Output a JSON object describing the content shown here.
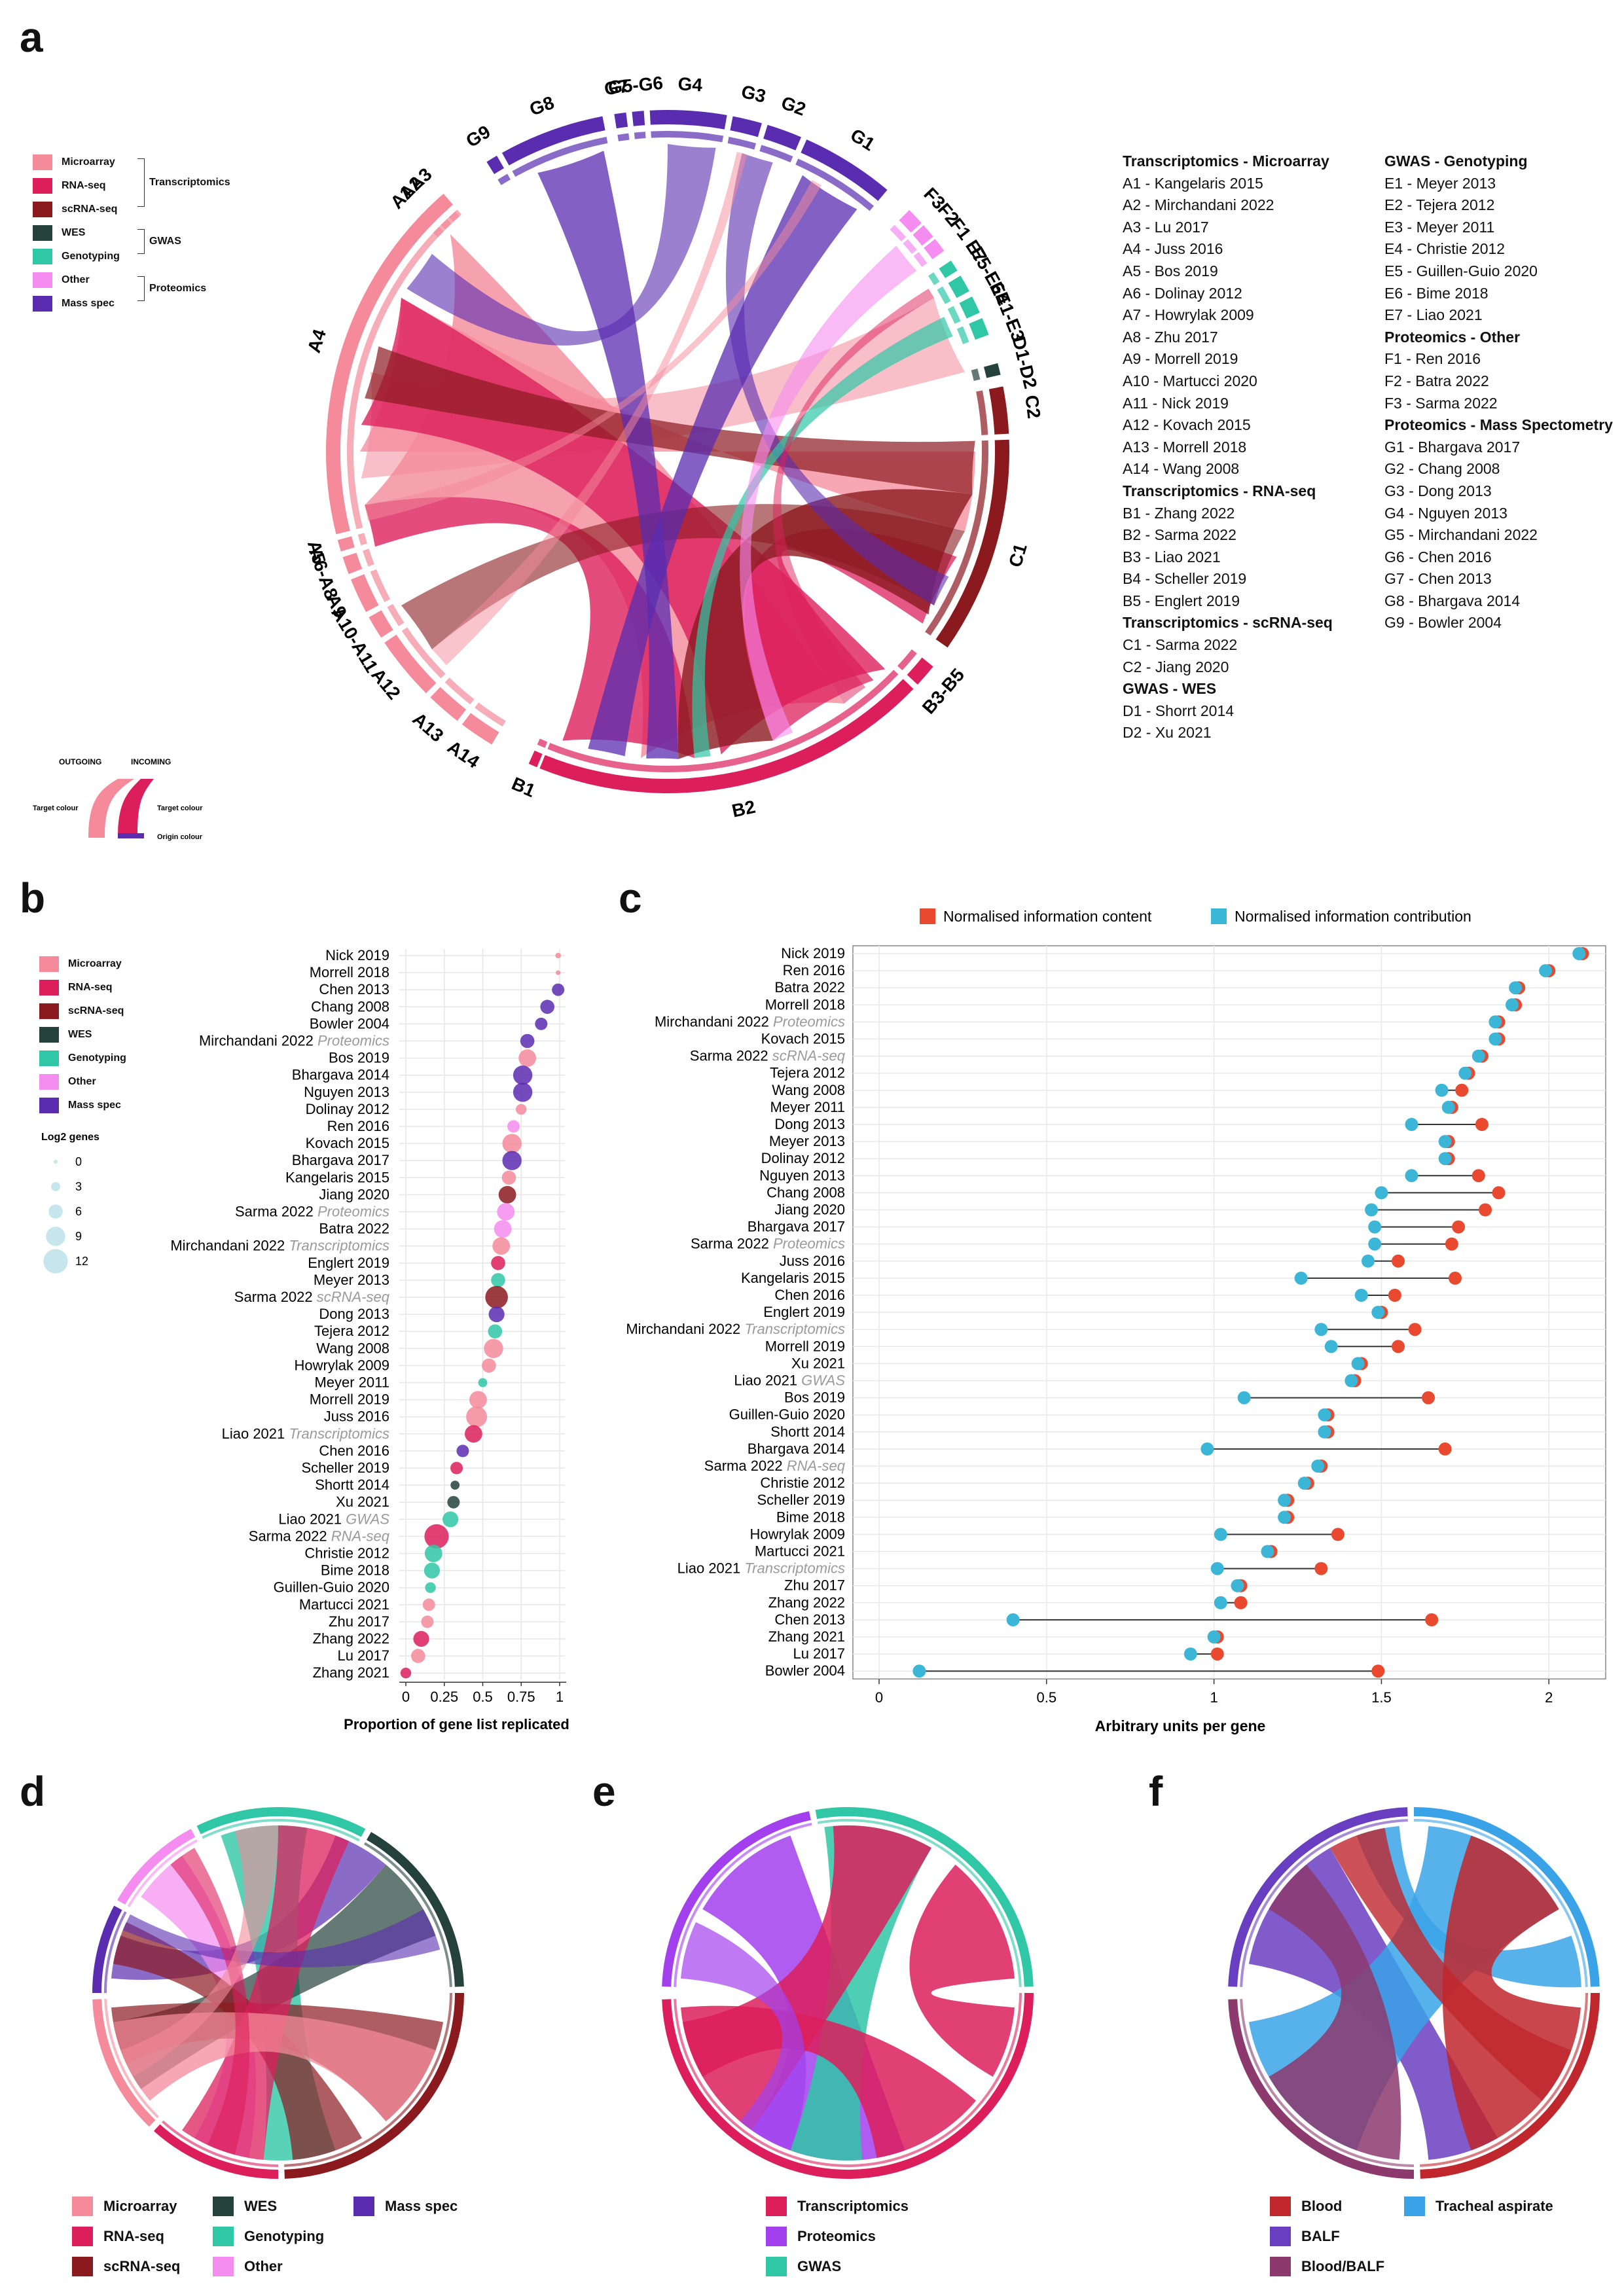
{
  "panels": {
    "a": "a",
    "b": "b",
    "c": "c",
    "d": "d",
    "e": "e",
    "f": "f"
  },
  "colors": {
    "microarray": "#f48a9a",
    "rnaseq": "#dc1f5c",
    "scrnaseq": "#8b1a1f",
    "wes": "#25423a",
    "genotyping": "#2fc7a6",
    "other": "#f58cf0",
    "massspec": "#5a2cb0",
    "transcriptomics": "#dc1f5c",
    "proteomics": "#a240ee",
    "gwas": "#2fc7a6",
    "blood": "#c0272d",
    "balf": "#6a3ec0",
    "bloodbalf": "#8c3a6e",
    "tracheal": "#3aa3e8",
    "content": "#e8492f",
    "contribution": "#3cb6d6"
  },
  "panel_a": {
    "legend": {
      "items": [
        "Microarray",
        "RNA-seq",
        "scRNA-seq",
        "WES",
        "Genotyping",
        "Other",
        "Mass spec"
      ],
      "groups": [
        "Transcriptomics",
        "GWAS",
        "Proteomics"
      ]
    },
    "flow_legend": {
      "outgoing": "OUTGOING",
      "incoming": "INCOMING",
      "target1": "Target colour",
      "target2": "Target colour",
      "origin": "Origin colour"
    },
    "sector_labels": [
      "A1",
      "A2",
      "A3",
      "A4",
      "A5",
      "A6-A8",
      "A9",
      "A10-A11",
      "A12",
      "A13",
      "A14",
      "B1",
      "B2",
      "B3-B5",
      "C1",
      "C2",
      "D1-D2",
      "E1-E3",
      "E4",
      "E5-E6",
      "E7",
      "F1",
      "F2",
      "F3",
      "G1",
      "G2",
      "G3",
      "G4",
      "G5-G6",
      "G7",
      "G8",
      "G9"
    ],
    "key_col1": [
      {
        "t": "Transcriptomics - Microarray",
        "h": true
      },
      {
        "t": "A1 - Kangelaris 2015"
      },
      {
        "t": "A2 - Mirchandani 2022"
      },
      {
        "t": "A3 - Lu 2017"
      },
      {
        "t": "A4 - Juss 2016"
      },
      {
        "t": "A5 - Bos 2019"
      },
      {
        "t": "A6 - Dolinay 2012"
      },
      {
        "t": "A7 - Howrylak 2009"
      },
      {
        "t": "A8 - Zhu 2017"
      },
      {
        "t": "A9 - Morrell 2019"
      },
      {
        "t": "A10 - Martucci 2020"
      },
      {
        "t": "A11 - Nick 2019"
      },
      {
        "t": "A12 - Kovach 2015"
      },
      {
        "t": "A13 - Morrell 2018"
      },
      {
        "t": "A14 - Wang 2008"
      },
      {
        "t": "Transcriptomics - RNA-seq",
        "h": true
      },
      {
        "t": "B1 - Zhang 2022"
      },
      {
        "t": "B2 - Sarma 2022"
      },
      {
        "t": "B3 - Liao 2021"
      },
      {
        "t": "B4 - Scheller 2019"
      },
      {
        "t": "B5 - Englert 2019"
      },
      {
        "t": "Transcriptomics - scRNA-seq",
        "h": true
      },
      {
        "t": "C1 - Sarma 2022"
      },
      {
        "t": "C2 - Jiang 2020"
      },
      {
        "t": "GWAS - WES",
        "h": true
      },
      {
        "t": "D1 - Shorrt 2014"
      },
      {
        "t": "D2 - Xu 2021"
      }
    ],
    "key_col2": [
      {
        "t": "GWAS - Genotyping",
        "h": true
      },
      {
        "t": "E1 - Meyer 2013"
      },
      {
        "t": "E2 - Tejera 2012"
      },
      {
        "t": "E3 - Meyer 2011"
      },
      {
        "t": "E4 - Christie 2012"
      },
      {
        "t": "E5 - Guillen-Guio 2020"
      },
      {
        "t": "E6 - Bime 2018"
      },
      {
        "t": "E7 - Liao 2021"
      },
      {
        "t": "Proteomics - Other",
        "h": true
      },
      {
        "t": "F1 - Ren 2016"
      },
      {
        "t": "F2 - Batra 2022"
      },
      {
        "t": "F3 - Sarma 2022"
      },
      {
        "t": "Proteomics - Mass Spectometry",
        "h": true
      },
      {
        "t": "G1 - Bhargava 2017"
      },
      {
        "t": "G2 - Chang 2008"
      },
      {
        "t": "G3 - Dong 2013"
      },
      {
        "t": "G4 - Nguyen 2013"
      },
      {
        "t": "G5 - Mirchandani 2022"
      },
      {
        "t": "G6 - Chen 2016"
      },
      {
        "t": "G7 - Chen 2013"
      },
      {
        "t": "G8 - Bhargava 2014"
      },
      {
        "t": "G9 - Bowler 2004"
      }
    ]
  },
  "panel_b": {
    "legend_items": [
      "Microarray",
      "RNA-seq",
      "scRNA-seq",
      "WES",
      "Genotyping",
      "Other",
      "Mass spec"
    ],
    "size_title": "Log2 genes",
    "size_levels": [
      "0",
      "3",
      "6",
      "9",
      "12"
    ]
  },
  "panel_d_legend": [
    "Microarray",
    "RNA-seq",
    "scRNA-seq",
    "WES",
    "Genotyping",
    "Other",
    "Mass spec"
  ],
  "panel_e_legend": [
    "Transcriptomics",
    "Proteomics",
    "GWAS"
  ],
  "panel_f_legend": [
    "Blood",
    "BALF",
    "Blood/BALF",
    "Tracheal aspirate"
  ],
  "chart_data": [
    {
      "id": "b",
      "type": "scatter",
      "xlabel": "Proportion of gene list replicated",
      "xlim": [
        0,
        1
      ],
      "xticks": [
        "0",
        "0.25",
        "0.5",
        "0.75",
        "1"
      ],
      "grid": true,
      "points": [
        {
          "label": "Nick 2019",
          "x": 0.99,
          "type": "Microarray",
          "size": 1
        },
        {
          "label": "Morrell 2018",
          "x": 0.99,
          "type": "Microarray",
          "size": 0.5
        },
        {
          "label": "Chen 2013",
          "x": 0.99,
          "type": "Mass spec",
          "size": 5
        },
        {
          "label": "Chang 2008",
          "x": 0.92,
          "type": "Mass spec",
          "size": 6
        },
        {
          "label": "Bowler 2004",
          "x": 0.88,
          "type": "Mass spec",
          "size": 5
        },
        {
          "label": "Mirchandani 2022",
          "sub": "Proteomics",
          "x": 0.79,
          "type": "Mass spec",
          "size": 6
        },
        {
          "label": "Bos 2019",
          "x": 0.79,
          "type": "Microarray",
          "size": 8
        },
        {
          "label": "Bhargava 2014",
          "x": 0.76,
          "type": "Mass spec",
          "size": 9
        },
        {
          "label": "Nguyen 2013",
          "x": 0.76,
          "type": "Mass spec",
          "size": 9
        },
        {
          "label": "Dolinay 2012",
          "x": 0.75,
          "type": "Microarray",
          "size": 4
        },
        {
          "label": "Ren 2016",
          "x": 0.7,
          "type": "Other",
          "size": 5
        },
        {
          "label": "Kovach 2015",
          "x": 0.69,
          "type": "Microarray",
          "size": 9
        },
        {
          "label": "Bhargava 2017",
          "x": 0.69,
          "type": "Mass spec",
          "size": 9
        },
        {
          "label": "Kangelaris 2015",
          "x": 0.67,
          "type": "Microarray",
          "size": 6
        },
        {
          "label": "Jiang 2020",
          "x": 0.66,
          "type": "scRNA-seq",
          "size": 8
        },
        {
          "label": "Sarma 2022",
          "sub": "Proteomics",
          "x": 0.65,
          "type": "Other",
          "size": 8
        },
        {
          "label": "Batra 2022",
          "x": 0.63,
          "type": "Other",
          "size": 8
        },
        {
          "label": "Mirchandani 2022",
          "sub": "Transcriptomics",
          "x": 0.62,
          "type": "Microarray",
          "size": 8
        },
        {
          "label": "Englert 2019",
          "x": 0.6,
          "type": "RNA-seq",
          "size": 6
        },
        {
          "label": "Meyer 2013",
          "x": 0.6,
          "type": "Genotyping",
          "size": 6
        },
        {
          "label": "Sarma 2022",
          "sub": "scRNA-seq",
          "x": 0.59,
          "type": "scRNA-seq",
          "size": 11
        },
        {
          "label": "Dong 2013",
          "x": 0.59,
          "type": "Mass spec",
          "size": 7
        },
        {
          "label": "Tejera 2012",
          "x": 0.58,
          "type": "Genotyping",
          "size": 6
        },
        {
          "label": "Wang 2008",
          "x": 0.57,
          "type": "Microarray",
          "size": 9
        },
        {
          "label": "Howrylak 2009",
          "x": 0.54,
          "type": "Microarray",
          "size": 6
        },
        {
          "label": "Meyer 2011",
          "x": 0.5,
          "type": "Genotyping",
          "size": 3
        },
        {
          "label": "Morrell 2019",
          "x": 0.47,
          "type": "Microarray",
          "size": 8
        },
        {
          "label": "Juss 2016",
          "x": 0.46,
          "type": "Microarray",
          "size": 10
        },
        {
          "label": "Liao 2021",
          "sub": "Transcriptomics",
          "x": 0.44,
          "type": "RNA-seq",
          "size": 8
        },
        {
          "label": "Chen 2016",
          "x": 0.37,
          "type": "Mass spec",
          "size": 5
        },
        {
          "label": "Scheller 2019",
          "x": 0.33,
          "type": "RNA-seq",
          "size": 5
        },
        {
          "label": "Shortt 2014",
          "x": 0.32,
          "type": "WES",
          "size": 3
        },
        {
          "label": "Xu 2021",
          "x": 0.31,
          "type": "WES",
          "size": 5
        },
        {
          "label": "Liao 2021",
          "sub": "GWAS",
          "x": 0.29,
          "type": "Genotyping",
          "size": 7
        },
        {
          "label": "Sarma 2022",
          "sub": "RNA-seq",
          "x": 0.2,
          "type": "RNA-seq",
          "size": 12
        },
        {
          "label": "Christie 2012",
          "x": 0.18,
          "type": "Genotyping",
          "size": 8
        },
        {
          "label": "Bime 2018",
          "x": 0.17,
          "type": "Genotyping",
          "size": 7
        },
        {
          "label": "Guillen-Guio 2020",
          "x": 0.16,
          "type": "Genotyping",
          "size": 4
        },
        {
          "label": "Martucci 2021",
          "x": 0.15,
          "type": "Microarray",
          "size": 5
        },
        {
          "label": "Zhu 2017",
          "x": 0.14,
          "type": "Microarray",
          "size": 5
        },
        {
          "label": "Zhang 2022",
          "x": 0.1,
          "type": "RNA-seq",
          "size": 7
        },
        {
          "label": "Lu 2017",
          "x": 0.08,
          "type": "Microarray",
          "size": 6
        },
        {
          "label": "Zhang 2021",
          "x": 0.0,
          "type": "RNA-seq",
          "size": 4
        }
      ]
    },
    {
      "id": "c",
      "type": "dumbbell",
      "xlabel": "Arbitrary units per gene",
      "xlim": [
        0,
        2.15
      ],
      "xticks": [
        0,
        0.5,
        1,
        1.5,
        2
      ],
      "xtick_labels": [
        "0",
        "0.5",
        "1",
        "1.5",
        "2"
      ],
      "series": [
        {
          "name": "Normalised information content",
          "color": "#e8492f"
        },
        {
          "name": "Normalised information contribution",
          "color": "#3cb6d6"
        }
      ],
      "legend_position": "top",
      "rows": [
        {
          "label": "Nick 2019",
          "content": 2.1,
          "contribution": 2.09
        },
        {
          "label": "Ren 2016",
          "content": 2.0,
          "contribution": 1.99
        },
        {
          "label": "Batra 2022",
          "content": 1.91,
          "contribution": 1.9
        },
        {
          "label": "Morrell 2018",
          "content": 1.9,
          "contribution": 1.89
        },
        {
          "label": "Mirchandani 2022",
          "sub": "Proteomics",
          "content": 1.85,
          "contribution": 1.84
        },
        {
          "label": "Kovach 2015",
          "content": 1.85,
          "contribution": 1.84
        },
        {
          "label": "Sarma 2022",
          "sub": "scRNA-seq",
          "content": 1.8,
          "contribution": 1.79
        },
        {
          "label": "Tejera 2012",
          "content": 1.76,
          "contribution": 1.75
        },
        {
          "label": "Wang 2008",
          "content": 1.74,
          "contribution": 1.68
        },
        {
          "label": "Meyer 2011",
          "content": 1.71,
          "contribution": 1.7
        },
        {
          "label": "Dong 2013",
          "content": 1.8,
          "contribution": 1.59
        },
        {
          "label": "Meyer 2013",
          "content": 1.7,
          "contribution": 1.69
        },
        {
          "label": "Dolinay 2012",
          "content": 1.7,
          "contribution": 1.69
        },
        {
          "label": "Nguyen 2013",
          "content": 1.79,
          "contribution": 1.59
        },
        {
          "label": "Chang 2008",
          "content": 1.85,
          "contribution": 1.5
        },
        {
          "label": "Jiang 2020",
          "content": 1.81,
          "contribution": 1.47
        },
        {
          "label": "Bhargava 2017",
          "content": 1.73,
          "contribution": 1.48
        },
        {
          "label": "Sarma 2022",
          "sub": "Proteomics",
          "content": 1.71,
          "contribution": 1.48
        },
        {
          "label": "Juss 2016",
          "content": 1.55,
          "contribution": 1.46
        },
        {
          "label": "Kangelaris 2015",
          "content": 1.72,
          "contribution": 1.26
        },
        {
          "label": "Chen 2016",
          "content": 1.54,
          "contribution": 1.44
        },
        {
          "label": "Englert 2019",
          "content": 1.5,
          "contribution": 1.49
        },
        {
          "label": "Mirchandani 2022",
          "sub": "Transcriptomics",
          "content": 1.6,
          "contribution": 1.32
        },
        {
          "label": "Morrell 2019",
          "content": 1.55,
          "contribution": 1.35
        },
        {
          "label": "Xu 2021",
          "content": 1.44,
          "contribution": 1.43
        },
        {
          "label": "Liao 2021",
          "sub": "GWAS",
          "content": 1.42,
          "contribution": 1.41
        },
        {
          "label": "Bos 2019",
          "content": 1.64,
          "contribution": 1.09
        },
        {
          "label": "Guillen-Guio 2020",
          "content": 1.34,
          "contribution": 1.33
        },
        {
          "label": "Shortt 2014",
          "content": 1.34,
          "contribution": 1.33
        },
        {
          "label": "Bhargava 2014",
          "content": 1.69,
          "contribution": 0.98
        },
        {
          "label": "Sarma 2022",
          "sub": "RNA-seq",
          "content": 1.32,
          "contribution": 1.31
        },
        {
          "label": "Christie 2012",
          "content": 1.28,
          "contribution": 1.27
        },
        {
          "label": "Scheller 2019",
          "content": 1.22,
          "contribution": 1.21
        },
        {
          "label": "Bime 2018",
          "content": 1.22,
          "contribution": 1.21
        },
        {
          "label": "Howrylak 2009",
          "content": 1.37,
          "contribution": 1.02
        },
        {
          "label": "Martucci 2021",
          "content": 1.17,
          "contribution": 1.16
        },
        {
          "label": "Liao 2021",
          "sub": "Transcriptomics",
          "content": 1.32,
          "contribution": 1.01
        },
        {
          "label": "Zhu 2017",
          "content": 1.08,
          "contribution": 1.07
        },
        {
          "label": "Zhang 2022",
          "content": 1.08,
          "contribution": 1.02
        },
        {
          "label": "Chen 2013",
          "content": 1.65,
          "contribution": 0.4
        },
        {
          "label": "Zhang 2021",
          "content": 1.01,
          "contribution": 1.0
        },
        {
          "label": "Lu 2017",
          "content": 1.01,
          "contribution": 0.93
        },
        {
          "label": "Bowler 2004",
          "content": 1.49,
          "contribution": 0.12
        }
      ]
    }
  ]
}
